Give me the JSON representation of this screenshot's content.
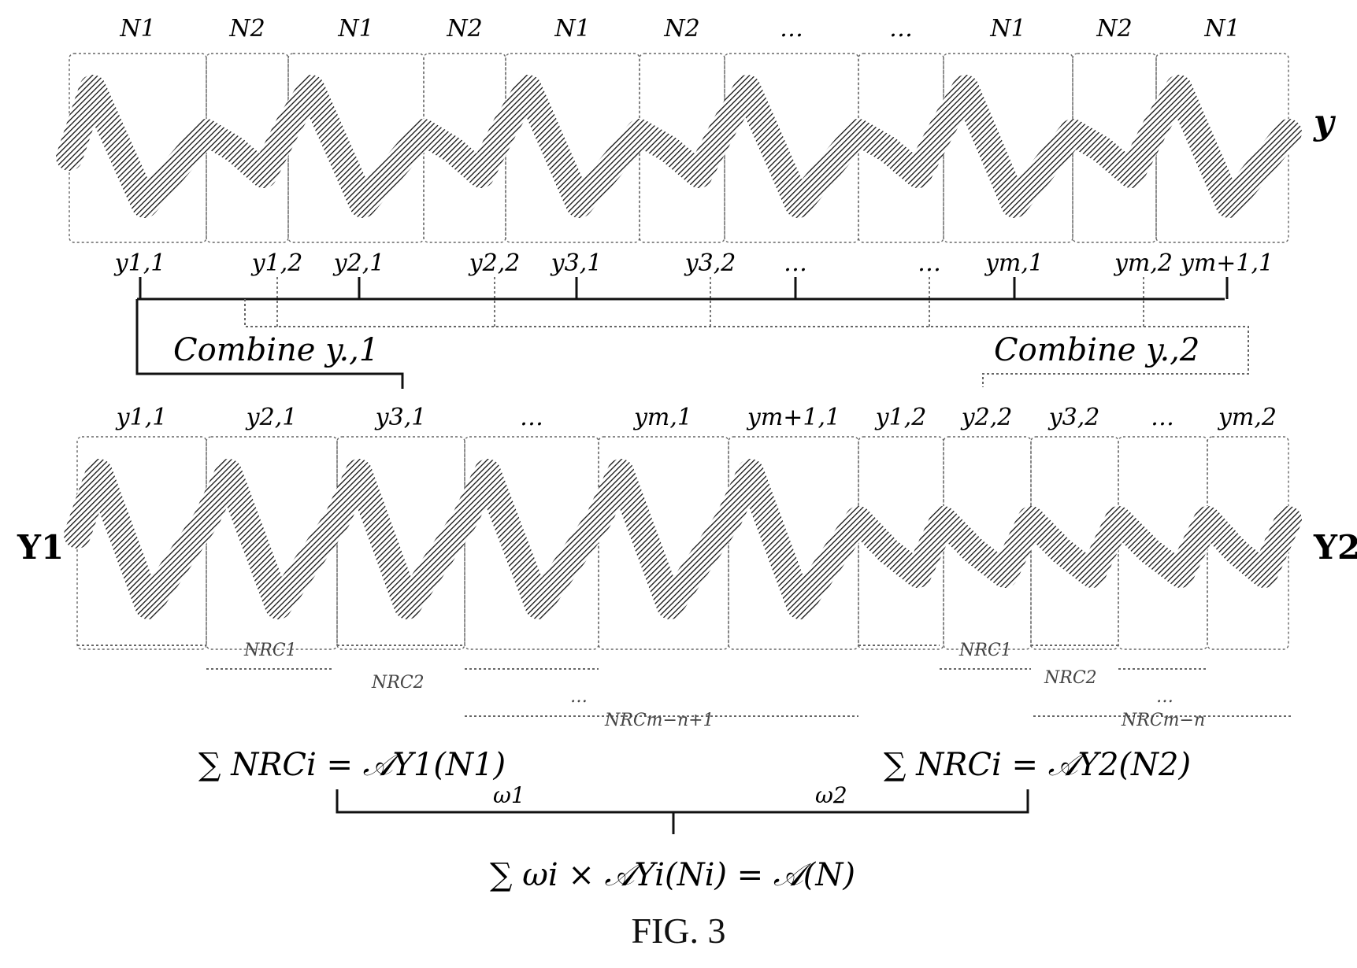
{
  "top_segment_labels": [
    "N1",
    "N2",
    "N1",
    "N2",
    "N1",
    "N2",
    "…",
    "…",
    "N1",
    "N2",
    "N1"
  ],
  "signal_y_label": "y",
  "top_sub_labels": [
    "y1,1",
    "y1,2",
    "y2,1",
    "y2,2",
    "y3,1",
    "y3,2",
    "…",
    "…",
    "ym,1",
    "ym,2",
    "ym+1,1"
  ],
  "combine_left": "Combine y.,1",
  "combine_right": "Combine y.,2",
  "bottom_labels": [
    "y1,1",
    "y2,1",
    "y3,1",
    "…",
    "ym,1",
    "ym+1,1",
    "y1,2",
    "y2,2",
    "y3,2",
    "…",
    "ym,2"
  ],
  "Y1_label": "Y1",
  "Y2_label": "Y2",
  "nrc_left": [
    "NRC1",
    "NRC2",
    "…",
    "NRCm−n+1"
  ],
  "nrc_right": [
    "NRC1",
    "NRC2",
    "…",
    "NRCm−n"
  ],
  "eq_left": "∑ NRCi = 𝒜Y1(N1)",
  "eq_right": "∑ NRCi = 𝒜Y2(N2)",
  "omega1": "ω1",
  "omega2": "ω2",
  "eq_final": "∑ ωi × 𝒜Yi(Ni) = 𝒜(N)",
  "caption": "FIG. 3"
}
